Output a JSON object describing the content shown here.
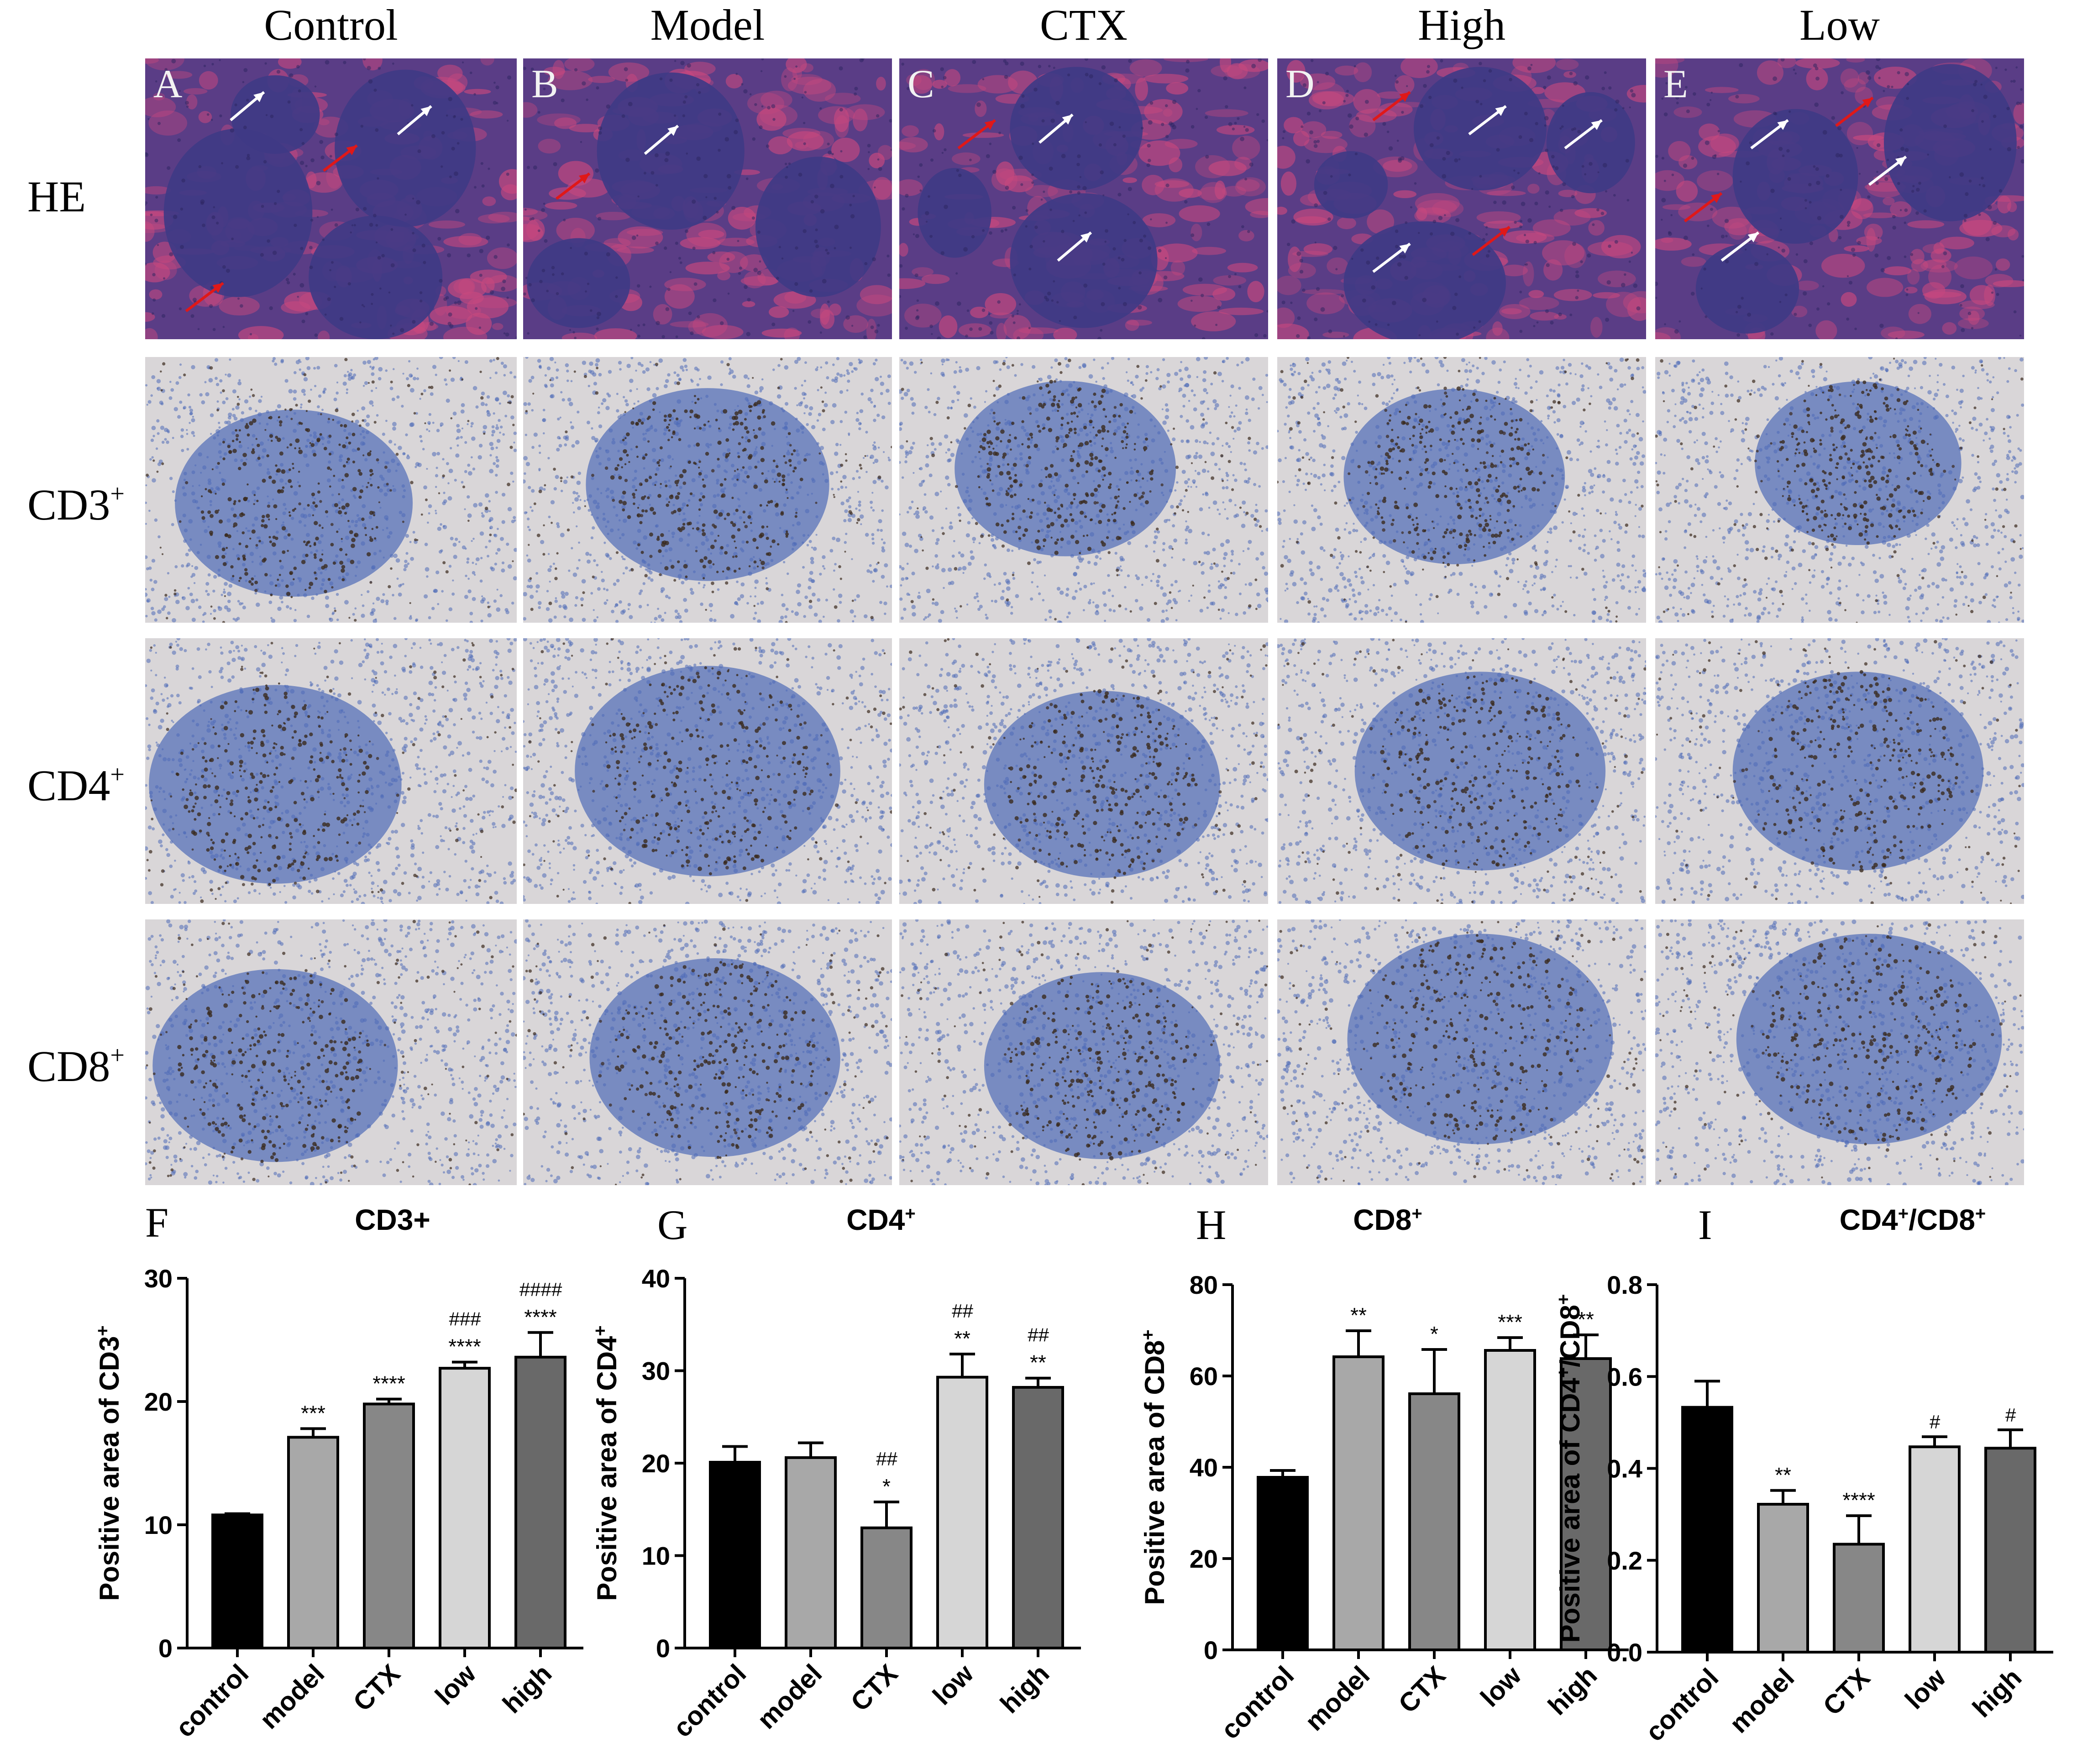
{
  "columns": [
    "Control",
    "Model",
    "CTX",
    "High",
    "Low"
  ],
  "tile_letters": [
    "A",
    "B",
    "C",
    "D",
    "E"
  ],
  "rows": [
    {
      "label": "HE",
      "sup": ""
    },
    {
      "label": "CD3",
      "sup": "+"
    },
    {
      "label": "CD4",
      "sup": "+"
    },
    {
      "label": "CD8",
      "sup": "+"
    }
  ],
  "colors": {
    "he_background": "#5a3d86",
    "he_pink": "#c6487e",
    "he_follicle": "#3f3a86",
    "ihc_background": "#d9d6d8",
    "ihc_blue": "#4f6bb8",
    "ihc_brown": "#3a2a1e",
    "arrow_white": "#ffffff",
    "arrow_red": "#e01818",
    "bar_fills": [
      "#000000",
      "#a8a8a8",
      "#878787",
      "#d6d6d6",
      "#696969"
    ]
  },
  "chart_data": [
    {
      "type": "bar",
      "letter": "F",
      "title": "CD3+",
      "ylabel": "Positive area of CD3",
      "ylabel_sup": "+",
      "categories": [
        "control",
        "model",
        "CTX",
        "low",
        "high"
      ],
      "values": [
        10.8,
        17.1,
        19.8,
        22.7,
        23.6
      ],
      "errors": [
        0.1,
        0.7,
        0.4,
        0.5,
        2.0
      ],
      "ylim": [
        0,
        30
      ],
      "yticks": [
        "0",
        "10",
        "20",
        "30"
      ],
      "sig_star": [
        "",
        "***",
        "****",
        "****",
        "****"
      ],
      "sig_hash": [
        "",
        "",
        "",
        "###",
        "####"
      ]
    },
    {
      "type": "bar",
      "letter": "G",
      "title": "CD4",
      "title_sup": "+",
      "ylabel": "Positive area of CD4",
      "ylabel_sup": "+",
      "categories": [
        "control",
        "model",
        "CTX",
        "low",
        "high"
      ],
      "values": [
        20.1,
        20.6,
        13.0,
        29.3,
        28.2
      ],
      "errors": [
        1.7,
        1.6,
        2.8,
        2.5,
        1.0
      ],
      "ylim": [
        0,
        40
      ],
      "yticks": [
        "0",
        "10",
        "20",
        "30",
        "40"
      ],
      "sig_star": [
        "",
        "",
        "*",
        "**",
        "**"
      ],
      "sig_hash": [
        "",
        "",
        "##",
        "##",
        "##"
      ]
    },
    {
      "type": "bar",
      "letter": "H",
      "title": "CD8",
      "title_sup": "+",
      "ylabel": "Positive area of CD8",
      "ylabel_sup": "+",
      "categories": [
        "control",
        "model",
        "CTX",
        "low",
        "high"
      ],
      "values": [
        37.8,
        64.2,
        56.1,
        65.6,
        63.8
      ],
      "errors": [
        1.5,
        5.7,
        9.7,
        2.8,
        5.2
      ],
      "ylim": [
        0,
        80
      ],
      "yticks": [
        "0",
        "20",
        "40",
        "60",
        "80"
      ],
      "sig_star": [
        "",
        "**",
        "*",
        "***",
        "**"
      ],
      "sig_hash": [
        "",
        "",
        "",
        "",
        ""
      ]
    },
    {
      "type": "bar",
      "letter": "I",
      "title": "CD4",
      "title_sup": "+",
      "title_mid": "/CD8",
      "title_sup2": "+",
      "ylabel": "Positive area of CD4",
      "ylabel_sup": "+",
      "ylabel_mid": "/CD8",
      "ylabel_sup2": "+",
      "categories": [
        "control",
        "model",
        "CTX",
        "low",
        "high"
      ],
      "values": [
        0.533,
        0.322,
        0.235,
        0.447,
        0.444
      ],
      "errors": [
        0.057,
        0.03,
        0.062,
        0.022,
        0.04
      ],
      "ylim": [
        0,
        0.8
      ],
      "yticks": [
        "0.0",
        "0.2",
        "0.4",
        "0.6",
        "0.8"
      ],
      "sig_star": [
        "",
        "**",
        "****",
        "",
        ""
      ],
      "sig_hash": [
        "",
        "",
        "",
        "#",
        "#"
      ]
    }
  ]
}
